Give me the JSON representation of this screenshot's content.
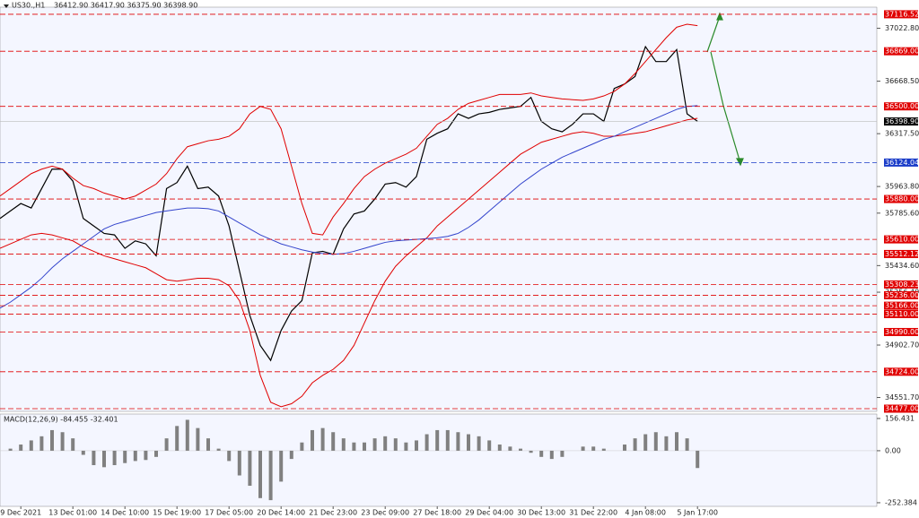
{
  "chart_data": [
    {
      "type": "line",
      "title": "US30.,H1",
      "subtitle": "36412.90 36417.90 36375.90 36398.90",
      "categories": [
        null,
        null,
        "9 Dec 2021",
        null,
        null,
        null,
        null,
        "13 Dec 01:00",
        null,
        null,
        null,
        null,
        "14 Dec 10:00",
        null,
        null,
        null,
        null,
        "15 Dec 19:00",
        null,
        null,
        null,
        null,
        "17 Dec 05:00",
        null,
        null,
        null,
        null,
        "20 Dec 14:00",
        null,
        null,
        null,
        null,
        "21 Dec 23:00",
        null,
        null,
        null,
        null,
        "23 Dec 09:00",
        null,
        null,
        null,
        null,
        "27 Dec 18:00",
        null,
        null,
        null,
        null,
        "29 Dec 04:00",
        null,
        null,
        null,
        null,
        "30 Dec 13:00",
        null,
        null,
        null,
        null,
        "31 Dec 22:00",
        null,
        null,
        null,
        null,
        "4 Jan 08:00",
        null,
        null,
        null,
        null,
        "5 Jan 17:00"
      ],
      "series": [
        {
          "color": "#000000",
          "values": [
            35750,
            35800,
            35850,
            35820,
            35950,
            36080,
            36080,
            36000,
            35750,
            35700,
            35650,
            35640,
            35550,
            35600,
            35580,
            35500,
            35950,
            35990,
            36100,
            35950,
            35960,
            35900,
            35700,
            35400,
            35100,
            34900,
            34800,
            35000,
            35130,
            35200,
            35520,
            35530,
            35510,
            35680,
            35780,
            35800,
            35880,
            35980,
            35990,
            35960,
            36030,
            36280,
            36320,
            36350,
            36450,
            36420,
            36450,
            36460,
            36480,
            36490,
            36500,
            36560,
            36400,
            36350,
            36330,
            36380,
            36450,
            36450,
            36400,
            36620,
            36650,
            36700,
            36900,
            36800,
            36800,
            36880,
            36450,
            36400
          ]
        },
        {
          "color": "#e00000",
          "values": [
            35900,
            35950,
            36000,
            36050,
            36080,
            36100,
            36080,
            36020,
            35970,
            35950,
            35920,
            35900,
            35880,
            35900,
            35940,
            35980,
            36050,
            36150,
            36230,
            36250,
            36270,
            36280,
            36300,
            36350,
            36450,
            36500,
            36480,
            36350,
            36100,
            35850,
            35650,
            35640,
            35760,
            35850,
            35950,
            36030,
            36080,
            36120,
            36150,
            36180,
            36220,
            36300,
            36380,
            36420,
            36480,
            36520,
            36540,
            36560,
            36580,
            36580,
            36580,
            36590,
            36570,
            36560,
            36550,
            36545,
            36540,
            36550,
            36570,
            36600,
            36650,
            36720,
            36800,
            36880,
            36960,
            37030,
            37050,
            37040
          ]
        },
        {
          "color": "#e00000",
          "values": [
            35550,
            35580,
            35610,
            35640,
            35650,
            35640,
            35620,
            35600,
            35560,
            35530,
            35500,
            35480,
            35460,
            35440,
            35420,
            35380,
            35340,
            35330,
            35340,
            35350,
            35350,
            35340,
            35300,
            35200,
            35000,
            34700,
            34520,
            34490,
            34510,
            34560,
            34650,
            34700,
            34740,
            34800,
            34900,
            35050,
            35200,
            35330,
            35430,
            35500,
            35560,
            35620,
            35700,
            35760,
            35820,
            35880,
            35940,
            36000,
            36060,
            36120,
            36180,
            36220,
            36260,
            36280,
            36300,
            36320,
            36330,
            36320,
            36300,
            36300,
            36310,
            36320,
            36330,
            36350,
            36370,
            36390,
            36410,
            36420
          ]
        },
        {
          "color": "#3344cc",
          "values": [
            35150,
            35190,
            35240,
            35290,
            35350,
            35420,
            35480,
            35530,
            35580,
            35630,
            35680,
            35710,
            35730,
            35750,
            35770,
            35790,
            35800,
            35810,
            35820,
            35820,
            35815,
            35800,
            35760,
            35720,
            35680,
            35640,
            35610,
            35580,
            35560,
            35540,
            35525,
            35515,
            35510,
            35515,
            35530,
            35550,
            35570,
            35590,
            35600,
            35605,
            35610,
            35615,
            35620,
            35630,
            35650,
            35690,
            35740,
            35800,
            35860,
            35920,
            35980,
            36030,
            36080,
            36120,
            36160,
            36190,
            36220,
            36250,
            36280,
            36300,
            36330,
            36360,
            36390,
            36420,
            36450,
            36480,
            36500,
            36505
          ]
        }
      ],
      "ylim": [
        34459,
        37164
      ],
      "yticks": [
        {
          "value": 37022.8,
          "label": "37022.80"
        },
        {
          "value": 36668.5,
          "label": "36668.50"
        },
        {
          "value": 36317.5,
          "label": "36317.50"
        },
        {
          "value": 35963.8,
          "label": "35963.80"
        },
        {
          "value": 35785.6,
          "label": "35785.60"
        },
        {
          "value": 35434.6,
          "label": "35434.60"
        },
        {
          "value": 35256.4,
          "label": "35256.40"
        },
        {
          "value": 34902.7,
          "label": "34902.70"
        },
        {
          "value": 34551.7,
          "label": "34551.70"
        }
      ],
      "levels": [
        {
          "value": 37116.52,
          "label": "37116.52",
          "color": "#e00000"
        },
        {
          "value": 36869,
          "label": "36869.00",
          "color": "#e00000"
        },
        {
          "value": 36500,
          "label": "36500.00",
          "color": "#e00000"
        },
        {
          "value": 36124.04,
          "label": "36124.04",
          "color": "#1a3cc8"
        },
        {
          "value": 35880,
          "label": "35880.00",
          "color": "#e00000"
        },
        {
          "value": 35610,
          "label": "35610.00",
          "color": "#e00000"
        },
        {
          "value": 35512.12,
          "label": "35512.12",
          "color": "#e00000"
        },
        {
          "value": 35308.23,
          "label": "35308.23",
          "color": "#e00000"
        },
        {
          "value": 35236,
          "label": "35236.00",
          "color": "#e00000"
        },
        {
          "value": 35166,
          "label": "35166.00",
          "color": "#e00000"
        },
        {
          "value": 35110,
          "label": "35110.00",
          "color": "#e00000"
        },
        {
          "value": 34990,
          "label": "34990.00",
          "color": "#e00000"
        },
        {
          "value": 34724,
          "label": "34724.00",
          "color": "#e00000"
        },
        {
          "value": 34477,
          "label": "34477.00",
          "color": "#e00000"
        }
      ],
      "last_price": {
        "value": 36398.9,
        "label": "36398.90"
      }
    },
    {
      "type": "bar",
      "title": "MACD(12,26,9) -84.455 -32.401",
      "color": "#808080",
      "values": [
        0,
        10,
        30,
        50,
        70,
        100,
        90,
        60,
        -20,
        -70,
        -80,
        -70,
        -60,
        -50,
        -45,
        -30,
        60,
        120,
        150,
        110,
        60,
        10,
        -50,
        -120,
        -170,
        -230,
        -240,
        -150,
        -40,
        40,
        100,
        110,
        90,
        60,
        40,
        40,
        60,
        70,
        60,
        40,
        50,
        80,
        100,
        100,
        90,
        80,
        70,
        50,
        30,
        20,
        10,
        -10,
        -30,
        -40,
        -30,
        0,
        20,
        20,
        10,
        0,
        30,
        60,
        80,
        90,
        70,
        90,
        60,
        -84
      ],
      "ylim": [
        -270,
        178
      ],
      "yticks": [
        {
          "value": 156.431,
          "label": "156.431"
        },
        {
          "value": 0,
          "label": "0.00"
        },
        {
          "value": -252.384,
          "label": "-252.384"
        }
      ]
    }
  ]
}
